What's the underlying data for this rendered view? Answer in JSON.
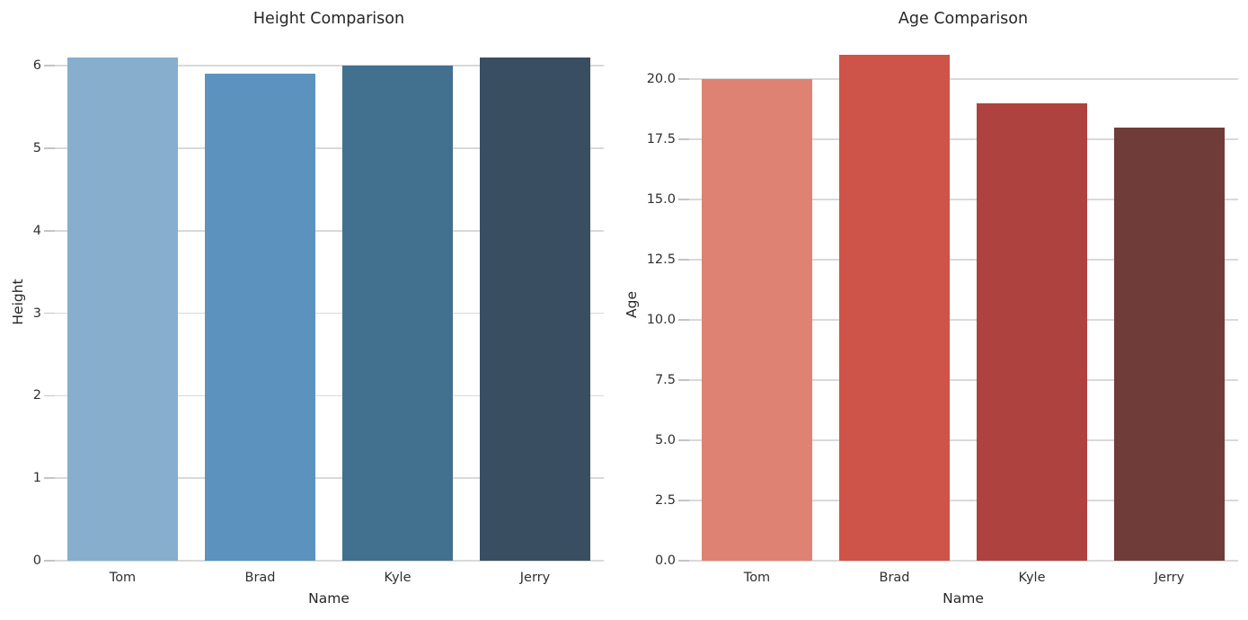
{
  "figure": {
    "background": "#ffffff",
    "grid_color": "#d9d9d9",
    "text_color": "#262626"
  },
  "chart_data": [
    {
      "type": "bar",
      "title": "Height Comparison",
      "xlabel": "Name",
      "ylabel": "Height",
      "categories": [
        "Tom",
        "Brad",
        "Kyle",
        "Jerry"
      ],
      "values": [
        6.1,
        5.9,
        6.0,
        6.1
      ],
      "bar_colors": [
        "#87AECD",
        "#5C92BE",
        "#42708F",
        "#3A4E61"
      ],
      "yticks": [
        0,
        1,
        2,
        3,
        4,
        5,
        6
      ],
      "ytick_labels": [
        "0",
        "1",
        "2",
        "3",
        "4",
        "5",
        "6"
      ],
      "ylim": [
        0,
        6.4
      ],
      "grid": true,
      "legend": "none"
    },
    {
      "type": "bar",
      "title": "Age Comparison",
      "xlabel": "Name",
      "ylabel": "Age",
      "categories": [
        "Tom",
        "Brad",
        "Kyle",
        "Jerry"
      ],
      "values": [
        20,
        21,
        19,
        18
      ],
      "bar_colors": [
        "#DE8273",
        "#CE5349",
        "#AE423F",
        "#6F3C39"
      ],
      "yticks": [
        0,
        2.5,
        5,
        7.5,
        10,
        12.5,
        15,
        17.5,
        20
      ],
      "ytick_labels": [
        "0.0",
        "2.5",
        "5.0",
        "7.5",
        "10.0",
        "12.5",
        "15.0",
        "17.5",
        "20.0"
      ],
      "ylim": [
        0,
        22.05
      ],
      "grid": true,
      "legend": "none"
    }
  ]
}
